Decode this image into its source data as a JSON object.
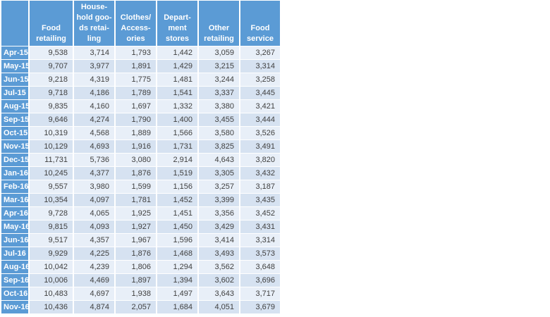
{
  "colors": {
    "header_bg": "#5B9BD5",
    "row_band_light": "#E8EFF8",
    "row_band_dark": "#D6E2F1",
    "header_text": "#FFFFFF",
    "value_text": "#404040",
    "gridline": "#FFFFFF"
  },
  "table": {
    "headers": [
      {
        "name": "corner",
        "lines": []
      },
      {
        "name": "food-retailing",
        "lines": [
          "Food",
          "retailing"
        ]
      },
      {
        "name": "household-goods-retailing",
        "lines": [
          "House-",
          "hold goo-",
          "ds retai-",
          "ling"
        ]
      },
      {
        "name": "clothes-accessories",
        "lines": [
          "Clothes/",
          "Access-",
          "ories"
        ]
      },
      {
        "name": "department-stores",
        "lines": [
          "Depart-",
          "ment",
          "stores"
        ]
      },
      {
        "name": "other-retailing",
        "lines": [
          "Other",
          "retailing"
        ]
      },
      {
        "name": "food-service",
        "lines": [
          "Food",
          "service"
        ]
      }
    ],
    "rows": [
      {
        "label": "Apr-15",
        "values": [
          "9,538",
          "3,714",
          "1,793",
          "1,442",
          "3,059",
          "3,267"
        ]
      },
      {
        "label": "May-15",
        "values": [
          "9,707",
          "3,977",
          "1,891",
          "1,429",
          "3,215",
          "3,314"
        ]
      },
      {
        "label": "Jun-15",
        "values": [
          "9,218",
          "4,319",
          "1,775",
          "1,481",
          "3,244",
          "3,258"
        ]
      },
      {
        "label": "Jul-15",
        "values": [
          "9,718",
          "4,186",
          "1,789",
          "1,541",
          "3,337",
          "3,445"
        ]
      },
      {
        "label": "Aug-15",
        "values": [
          "9,835",
          "4,160",
          "1,697",
          "1,332",
          "3,380",
          "3,421"
        ]
      },
      {
        "label": "Sep-15",
        "values": [
          "9,646",
          "4,274",
          "1,790",
          "1,400",
          "3,455",
          "3,444"
        ]
      },
      {
        "label": "Oct-15",
        "values": [
          "10,319",
          "4,568",
          "1,889",
          "1,566",
          "3,580",
          "3,526"
        ]
      },
      {
        "label": "Nov-15",
        "values": [
          "10,129",
          "4,693",
          "1,916",
          "1,731",
          "3,825",
          "3,491"
        ]
      },
      {
        "label": "Dec-15",
        "values": [
          "11,731",
          "5,736",
          "3,080",
          "2,914",
          "4,643",
          "3,820"
        ]
      },
      {
        "label": "Jan-16",
        "values": [
          "10,245",
          "4,377",
          "1,876",
          "1,519",
          "3,305",
          "3,432"
        ]
      },
      {
        "label": "Feb-16",
        "values": [
          "9,557",
          "3,980",
          "1,599",
          "1,156",
          "3,257",
          "3,187"
        ]
      },
      {
        "label": "Mar-16",
        "values": [
          "10,354",
          "4,097",
          "1,781",
          "1,452",
          "3,399",
          "3,435"
        ]
      },
      {
        "label": "Apr-16",
        "values": [
          "9,728",
          "4,065",
          "1,925",
          "1,451",
          "3,356",
          "3,452"
        ]
      },
      {
        "label": "May-16",
        "values": [
          "9,815",
          "4,093",
          "1,927",
          "1,450",
          "3,429",
          "3,431"
        ]
      },
      {
        "label": "Jun-16",
        "values": [
          "9,517",
          "4,357",
          "1,967",
          "1,596",
          "3,414",
          "3,314"
        ]
      },
      {
        "label": "Jul-16",
        "values": [
          "9,929",
          "4,225",
          "1,876",
          "1,468",
          "3,493",
          "3,573"
        ]
      },
      {
        "label": "Aug-16",
        "values": [
          "10,042",
          "4,239",
          "1,806",
          "1,294",
          "3,562",
          "3,648"
        ]
      },
      {
        "label": "Sep-16",
        "values": [
          "10,006",
          "4,469",
          "1,897",
          "1,394",
          "3,602",
          "3,696"
        ]
      },
      {
        "label": "Oct-16",
        "values": [
          "10,483",
          "4,697",
          "1,938",
          "1,497",
          "3,643",
          "3,717"
        ]
      },
      {
        "label": "Nov-16",
        "values": [
          "10,436",
          "4,874",
          "2,057",
          "1,684",
          "4,051",
          "3,679"
        ]
      }
    ]
  }
}
